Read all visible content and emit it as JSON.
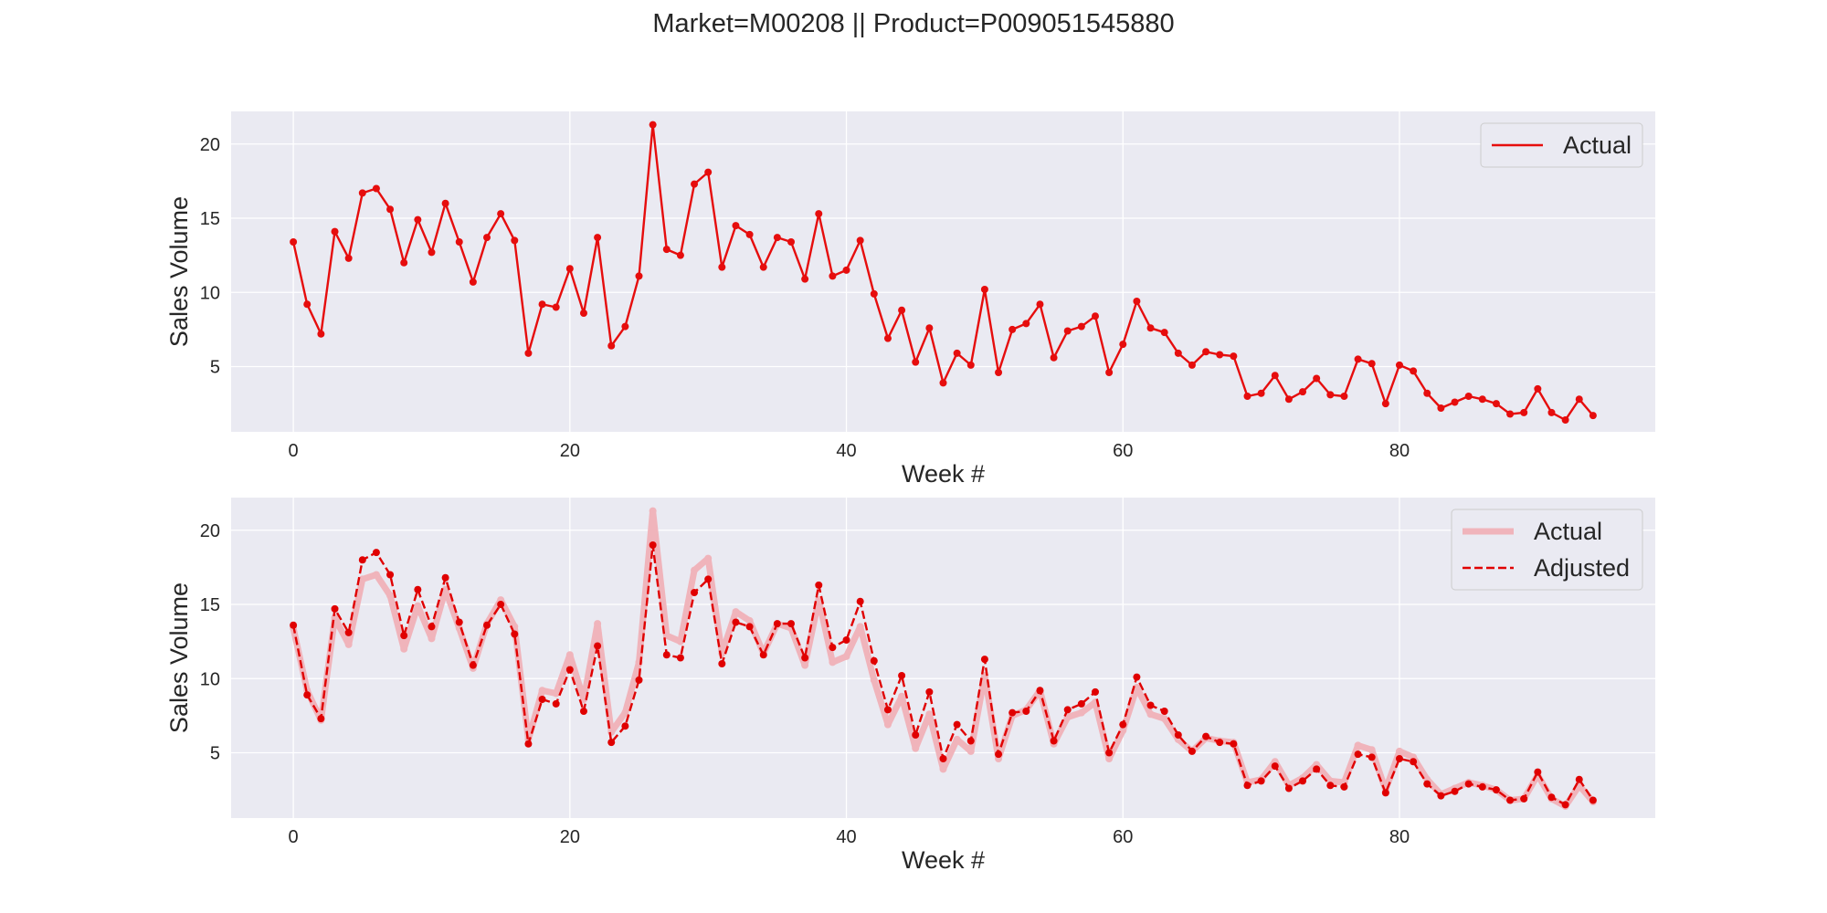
{
  "figure_title": "Market=M00208 || Product=P009051545880",
  "colors": {
    "axes_bg": "#eaeaf2",
    "grid": "#ffffff",
    "actual": "#e60d0d",
    "actual_faded": "#f0b4bb",
    "adjusted": "#e00000"
  },
  "chart_data": [
    {
      "type": "line",
      "xlabel": "Week #",
      "ylabel": "Sales Volume",
      "xlim": [
        -4.5,
        98.5
      ],
      "ylim": [
        0.6,
        22.2
      ],
      "xticks": [
        0,
        20,
        40,
        60,
        80
      ],
      "yticks": [
        5,
        10,
        15,
        20
      ],
      "grid": true,
      "legend_position": "top-right",
      "series": [
        {
          "name": "Actual",
          "style": "solid-markers",
          "values": [
            13.4,
            9.2,
            7.2,
            14.1,
            12.3,
            16.7,
            17.0,
            15.6,
            12.0,
            14.9,
            12.7,
            16.0,
            13.4,
            10.7,
            13.7,
            15.3,
            13.5,
            5.9,
            9.2,
            9.0,
            11.6,
            8.6,
            13.7,
            6.4,
            7.7,
            11.1,
            21.3,
            12.9,
            12.5,
            17.3,
            18.1,
            11.7,
            14.5,
            13.9,
            11.7,
            13.7,
            13.4,
            10.9,
            15.3,
            11.1,
            11.5,
            13.5,
            9.9,
            6.9,
            8.8,
            5.3,
            7.6,
            3.9,
            5.9,
            5.1,
            10.2,
            4.6,
            7.5,
            7.9,
            9.2,
            5.6,
            7.4,
            7.7,
            8.4,
            4.6,
            6.5,
            9.4,
            7.6,
            7.3,
            5.9,
            5.1,
            6.0,
            5.8,
            5.7,
            3.0,
            3.2,
            4.4,
            2.8,
            3.3,
            4.2,
            3.1,
            3.0,
            5.5,
            5.2,
            2.5,
            5.1,
            4.7,
            3.2,
            2.2,
            2.6,
            3.0,
            2.8,
            2.5,
            1.8,
            1.9,
            3.5,
            1.9,
            1.4,
            2.8,
            1.7
          ]
        }
      ]
    },
    {
      "type": "line",
      "xlabel": "Week #",
      "ylabel": "Sales Volume",
      "xlim": [
        -4.5,
        98.5
      ],
      "ylim": [
        0.6,
        22.2
      ],
      "xticks": [
        0,
        20,
        40,
        60,
        80
      ],
      "yticks": [
        5,
        10,
        15,
        20
      ],
      "grid": true,
      "legend_position": "top-right",
      "series": [
        {
          "name": "Actual",
          "style": "thick-faded",
          "values": [
            13.4,
            9.2,
            7.2,
            14.1,
            12.3,
            16.7,
            17.0,
            15.6,
            12.0,
            14.9,
            12.7,
            16.0,
            13.4,
            10.7,
            13.7,
            15.3,
            13.5,
            5.9,
            9.2,
            9.0,
            11.6,
            8.6,
            13.7,
            6.4,
            7.7,
            11.1,
            21.3,
            12.9,
            12.5,
            17.3,
            18.1,
            11.7,
            14.5,
            13.9,
            11.7,
            13.7,
            13.4,
            10.9,
            15.3,
            11.1,
            11.5,
            13.5,
            9.9,
            6.9,
            8.8,
            5.3,
            7.6,
            3.9,
            5.9,
            5.1,
            10.2,
            4.6,
            7.5,
            7.9,
            9.2,
            5.6,
            7.4,
            7.7,
            8.4,
            4.6,
            6.5,
            9.4,
            7.6,
            7.3,
            5.9,
            5.1,
            6.0,
            5.8,
            5.7,
            3.0,
            3.2,
            4.4,
            2.8,
            3.3,
            4.2,
            3.1,
            3.0,
            5.5,
            5.2,
            2.5,
            5.1,
            4.7,
            3.2,
            2.2,
            2.6,
            3.0,
            2.8,
            2.5,
            1.8,
            1.9,
            3.5,
            1.9,
            1.4,
            2.8,
            1.7
          ]
        },
        {
          "name": "Adjusted",
          "style": "dashed-markers",
          "values": [
            13.6,
            8.9,
            7.3,
            14.7,
            13.1,
            18.0,
            18.5,
            17.0,
            12.9,
            16.0,
            13.5,
            16.8,
            13.8,
            10.9,
            13.6,
            15.0,
            13.0,
            5.6,
            8.6,
            8.3,
            10.6,
            7.8,
            12.2,
            5.7,
            6.8,
            9.9,
            19.0,
            11.6,
            11.4,
            15.8,
            16.7,
            11.0,
            13.8,
            13.5,
            11.6,
            13.7,
            13.7,
            11.4,
            16.3,
            12.1,
            12.6,
            15.2,
            11.2,
            7.9,
            10.2,
            6.2,
            9.1,
            4.6,
            6.9,
            5.8,
            11.3,
            4.9,
            7.7,
            7.8,
            9.2,
            5.8,
            7.9,
            8.3,
            9.1,
            5.0,
            6.9,
            10.1,
            8.2,
            7.8,
            6.2,
            5.1,
            6.1,
            5.7,
            5.6,
            2.8,
            3.1,
            4.1,
            2.6,
            3.1,
            3.9,
            2.8,
            2.7,
            4.9,
            4.7,
            2.3,
            4.6,
            4.4,
            2.9,
            2.1,
            2.4,
            2.9,
            2.7,
            2.5,
            1.8,
            1.9,
            3.7,
            2.0,
            1.5,
            3.2,
            1.8
          ]
        }
      ]
    }
  ]
}
